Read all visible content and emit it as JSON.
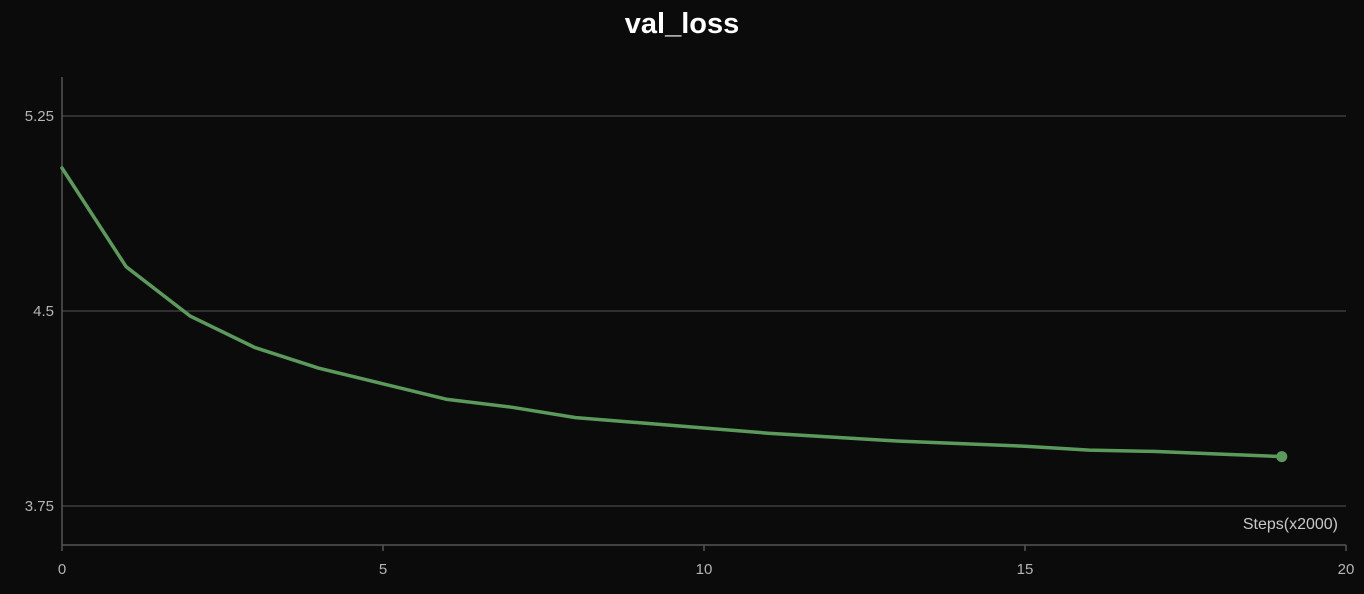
{
  "chart_data": {
    "type": "line",
    "title": "val_loss",
    "xlabel": "Steps(x2000)",
    "ylabel": "",
    "xlim": [
      0,
      20
    ],
    "ylim": [
      3.6,
      5.4
    ],
    "xticks": [
      0,
      5,
      10,
      15,
      20
    ],
    "yticks": [
      3.75,
      4.5,
      5.25
    ],
    "ytick_labels": [
      "3.75",
      "4.5",
      "5.25"
    ],
    "xtick_labels": [
      "0",
      "5",
      "10",
      "15",
      "20"
    ],
    "grid": true,
    "series": [
      {
        "color": "#5c9a5c",
        "x": [
          0,
          1,
          2,
          3,
          4,
          5,
          6,
          7,
          8,
          9,
          10,
          11,
          12,
          13,
          14,
          15,
          16,
          17,
          18,
          19
        ],
        "values": [
          5.05,
          4.67,
          4.48,
          4.36,
          4.28,
          4.22,
          4.16,
          4.13,
          4.09,
          4.07,
          4.05,
          4.03,
          4.015,
          4.0,
          3.99,
          3.98,
          3.965,
          3.96,
          3.95,
          3.94
        ]
      }
    ]
  }
}
